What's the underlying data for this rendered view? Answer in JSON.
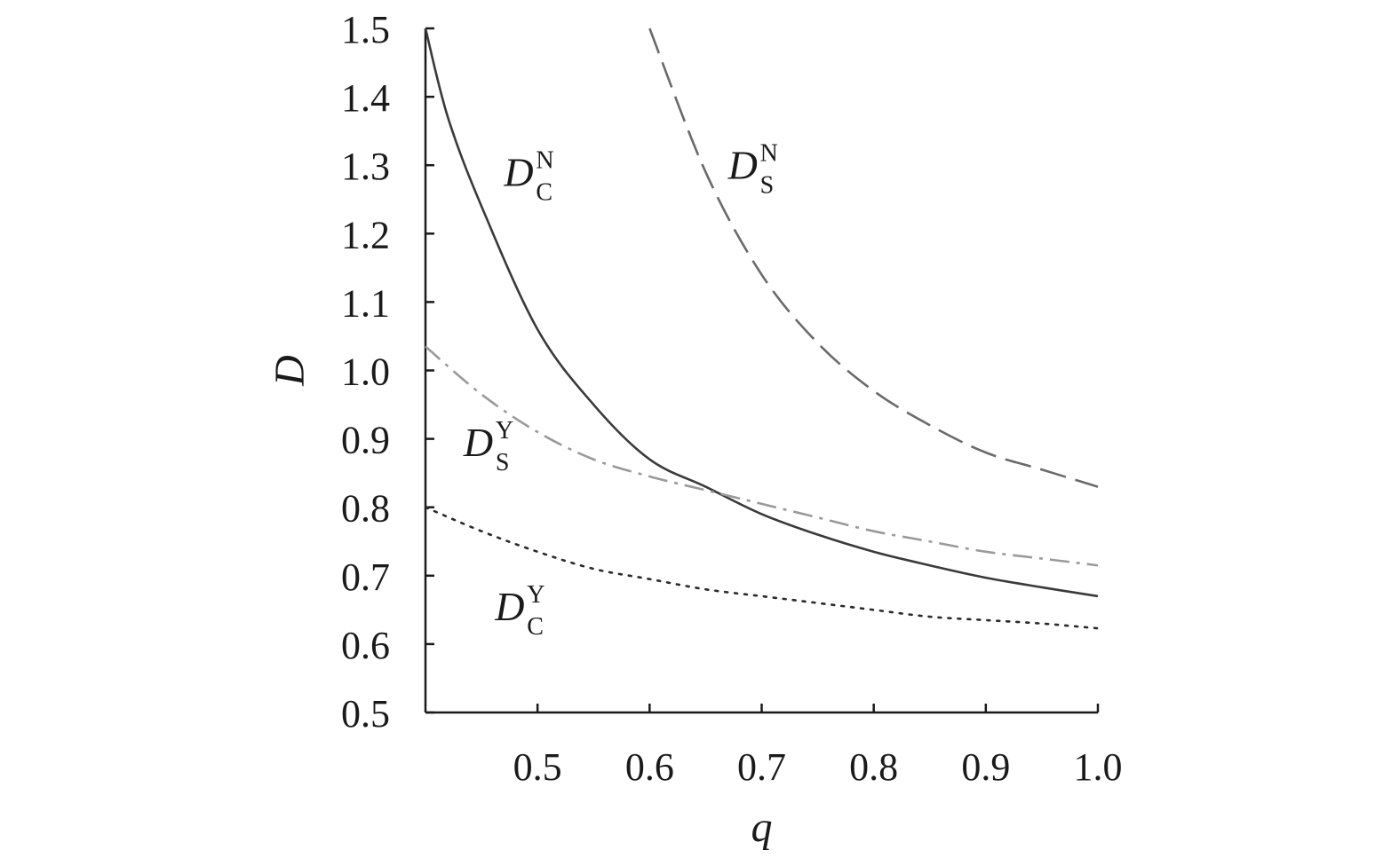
{
  "chart_data": {
    "type": "line",
    "title": "",
    "xlabel": "q",
    "ylabel": "D",
    "xlim": [
      0.4,
      1.0
    ],
    "ylim": [
      0.5,
      1.5
    ],
    "x_ticks": [
      0.5,
      0.6,
      0.7,
      0.8,
      0.9,
      1.0
    ],
    "x_tick_labels": [
      "0.5",
      "0.6",
      "0.7",
      "0.8",
      "0.9",
      "1.0"
    ],
    "y_ticks": [
      0.5,
      0.6,
      0.7,
      0.8,
      0.9,
      1.0,
      1.1,
      1.2,
      1.3,
      1.4,
      1.5
    ],
    "y_tick_labels": [
      "0.5",
      "0.6",
      "0.7",
      "0.8",
      "0.9",
      "1.0",
      "1.1",
      "1.2",
      "1.3",
      "1.4",
      "1.5"
    ],
    "grid": false,
    "legend": "none",
    "series": [
      {
        "name": "D_C^N",
        "label_main": "D",
        "label_super": "N",
        "label_sub": "C",
        "style": "solid",
        "color": "#3a3a3a",
        "x": [
          0.4,
          0.42,
          0.45,
          0.5,
          0.55,
          0.6,
          0.65,
          0.7,
          0.75,
          0.8,
          0.85,
          0.9,
          0.95,
          1.0
        ],
        "y": [
          1.5,
          1.37,
          1.24,
          1.06,
          0.95,
          0.87,
          0.83,
          0.79,
          0.76,
          0.735,
          0.715,
          0.697,
          0.683,
          0.67
        ]
      },
      {
        "name": "D_S^N",
        "label_main": "D",
        "label_super": "N",
        "label_sub": "S",
        "style": "dashed",
        "color": "#6a6a6a",
        "x": [
          0.6,
          0.65,
          0.7,
          0.75,
          0.8,
          0.85,
          0.9,
          0.95,
          1.0
        ],
        "y": [
          1.5,
          1.29,
          1.14,
          1.04,
          0.97,
          0.92,
          0.88,
          0.855,
          0.83
        ]
      },
      {
        "name": "D_S^Y",
        "label_main": "D",
        "label_super": "Y",
        "label_sub": "S",
        "style": "dashdot",
        "color": "#9a9a9a",
        "x": [
          0.4,
          0.45,
          0.5,
          0.55,
          0.6,
          0.65,
          0.7,
          0.75,
          0.8,
          0.85,
          0.9,
          0.95,
          1.0
        ],
        "y": [
          1.035,
          0.965,
          0.91,
          0.87,
          0.845,
          0.825,
          0.805,
          0.785,
          0.765,
          0.75,
          0.735,
          0.725,
          0.715
        ]
      },
      {
        "name": "D_C^Y",
        "label_main": "D",
        "label_super": "Y",
        "label_sub": "C",
        "style": "dotted",
        "color": "#2a2a2a",
        "x": [
          0.4,
          0.45,
          0.5,
          0.55,
          0.6,
          0.65,
          0.7,
          0.75,
          0.8,
          0.85,
          0.9,
          0.95,
          1.0
        ],
        "y": [
          0.8,
          0.765,
          0.735,
          0.71,
          0.695,
          0.68,
          0.67,
          0.66,
          0.65,
          0.64,
          0.635,
          0.63,
          0.623
        ]
      }
    ],
    "annotations": [
      {
        "series": "D_C^N",
        "x": 0.47,
        "y": 1.27
      },
      {
        "series": "D_S^N",
        "x": 0.67,
        "y": 1.28
      },
      {
        "series": "D_S^Y",
        "x": 0.434,
        "y": 0.875
      },
      {
        "series": "D_C^Y",
        "x": 0.462,
        "y": 0.635
      }
    ]
  }
}
